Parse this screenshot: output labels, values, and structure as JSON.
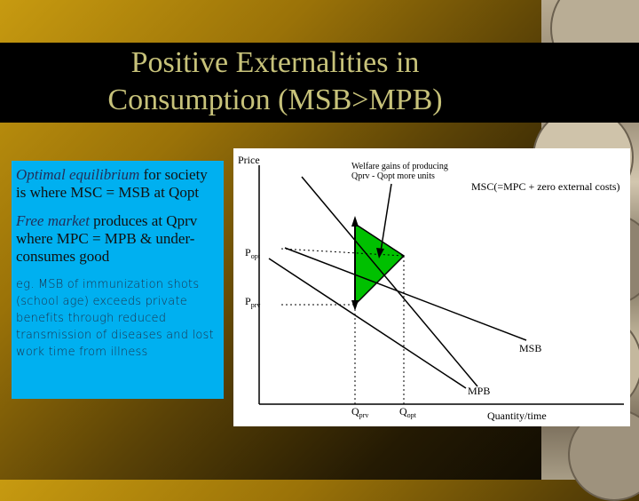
{
  "title_line1": "Positive Externalities in",
  "title_line2": "Consumption (MSB>MPB)",
  "textbox": {
    "p1_italic": "Optimal equilibrium",
    "p1_rest": " for society is where MSC = MSB at Qopt",
    "p2_italic": "Free market",
    "p2_rest": " produces at Qprv where MPC = MPB & under-consumes good",
    "p3": "eg. MSB of immunization shots (school age) exceeds private benefits through reduced transmission of diseases and lost work time from illness"
  },
  "diagram": {
    "y_axis_label": "Price",
    "x_axis_label": "Quantity/time",
    "p_opt": "P",
    "p_opt_sub": "opt",
    "p_prv": "P",
    "p_prv_sub": "prv",
    "q_prv": "Q",
    "q_prv_sub": "prv",
    "q_opt": "Q",
    "q_opt_sub": "opt",
    "annotation_line1": "Welfare gains of producing",
    "annotation_line2": "Qprv - Qopt more units",
    "msc_label": "MSC(=MPC + zero external costs)",
    "msb_label": "MSB",
    "mpb_label": "MPB",
    "welfare_color": "#00c000"
  }
}
